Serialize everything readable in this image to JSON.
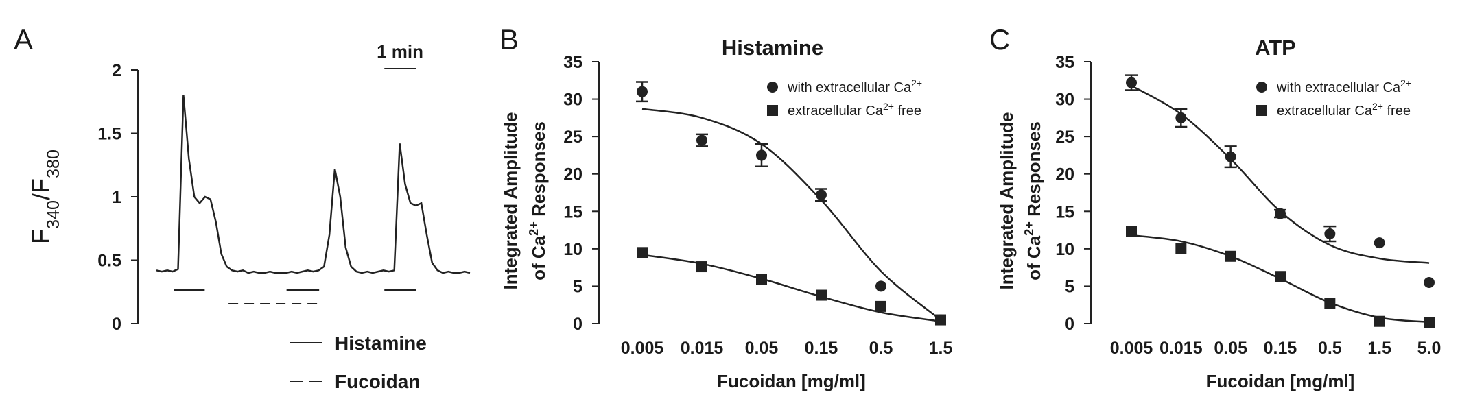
{
  "chart_data": [
    {
      "type": "line",
      "panel": "A",
      "ylabel": "F340/F380",
      "color": "#222222",
      "values": [
        0.42,
        0.41,
        0.42,
        0.41,
        0.43,
        1.8,
        1.3,
        1.0,
        0.95,
        1.0,
        0.98,
        0.8,
        0.55,
        0.45,
        0.42,
        0.41,
        0.42,
        0.4,
        0.41,
        0.4,
        0.4,
        0.41,
        0.4,
        0.4,
        0.4,
        0.41,
        0.4,
        0.41,
        0.42,
        0.41,
        0.42,
        0.45,
        0.7,
        1.22,
        1.0,
        0.6,
        0.45,
        0.41,
        0.4,
        0.41,
        0.4,
        0.41,
        0.42,
        0.41,
        0.42,
        1.42,
        1.1,
        0.95,
        0.93,
        0.95,
        0.7,
        0.48,
        0.42,
        0.4,
        0.41,
        0.4,
        0.4,
        0.41,
        0.4
      ],
      "ylim": [
        0,
        2
      ],
      "yticks": [
        0,
        0.5,
        1,
        1.5,
        2
      ],
      "scale_bar": "1 min",
      "legend": [
        {
          "name": "Histamine",
          "style": "solid"
        },
        {
          "name": "Fucoidan",
          "style": "dashed"
        }
      ]
    },
    {
      "type": "scatter",
      "panel": "B",
      "title": "Histamine",
      "xlabel": "Fucoidan [mg/ml]",
      "ylabel": [
        "Integrated Amplitude",
        "of Ca2+ Responses"
      ],
      "categories": [
        "0.005",
        "0.015",
        "0.05",
        "0.15",
        "0.5",
        "1.5"
      ],
      "ylim": [
        0,
        35
      ],
      "yticks": [
        0,
        5,
        10,
        15,
        20,
        25,
        30,
        35
      ],
      "series": [
        {
          "name": "with extracellular Ca2+",
          "marker": "circle",
          "color": "#222222",
          "values": [
            31,
            24.5,
            22.5,
            17.2,
            5,
            0.5
          ],
          "errors": [
            1.3,
            0.8,
            1.5,
            0.8,
            null,
            null
          ],
          "fit": [
            28.7,
            27.5,
            24,
            16.5,
            7,
            0.5
          ]
        },
        {
          "name": "extracellular Ca2+ free",
          "marker": "square",
          "color": "#222222",
          "values": [
            9.5,
            7.6,
            5.9,
            3.8,
            2.3,
            0.5
          ],
          "errors": [
            null,
            null,
            null,
            null,
            null,
            null
          ],
          "fit": [
            9.2,
            8,
            6,
            3.6,
            1.5,
            0.3
          ]
        }
      ]
    },
    {
      "type": "scatter",
      "panel": "C",
      "title": "ATP",
      "xlabel": "Fucoidan [mg/ml]",
      "ylabel": [
        "Integrated Amplitude",
        "of Ca2+ Responses"
      ],
      "categories": [
        "0.005",
        "0.015",
        "0.05",
        "0.15",
        "0.5",
        "1.5",
        "5.0"
      ],
      "ylim": [
        0,
        35
      ],
      "yticks": [
        0,
        5,
        10,
        15,
        20,
        25,
        30,
        35
      ],
      "series": [
        {
          "name": "with extracellular Ca2+",
          "marker": "circle",
          "color": "#222222",
          "values": [
            32.2,
            27.5,
            22.3,
            14.7,
            12,
            10.8,
            5.5
          ],
          "errors": [
            1,
            1.2,
            1.4,
            0.5,
            1,
            null,
            null
          ],
          "fit": [
            31.8,
            28,
            22,
            15,
            10.5,
            8.7,
            8.1
          ]
        },
        {
          "name": "extracellular Ca2+ free",
          "marker": "square",
          "color": "#222222",
          "values": [
            12.3,
            10,
            9,
            6.3,
            2.7,
            0.3,
            0.1
          ],
          "errors": [
            null,
            null,
            null,
            null,
            null,
            null,
            null
          ],
          "fit": [
            11.8,
            11,
            9,
            6,
            2.8,
            0.8,
            0.2
          ]
        }
      ]
    }
  ]
}
